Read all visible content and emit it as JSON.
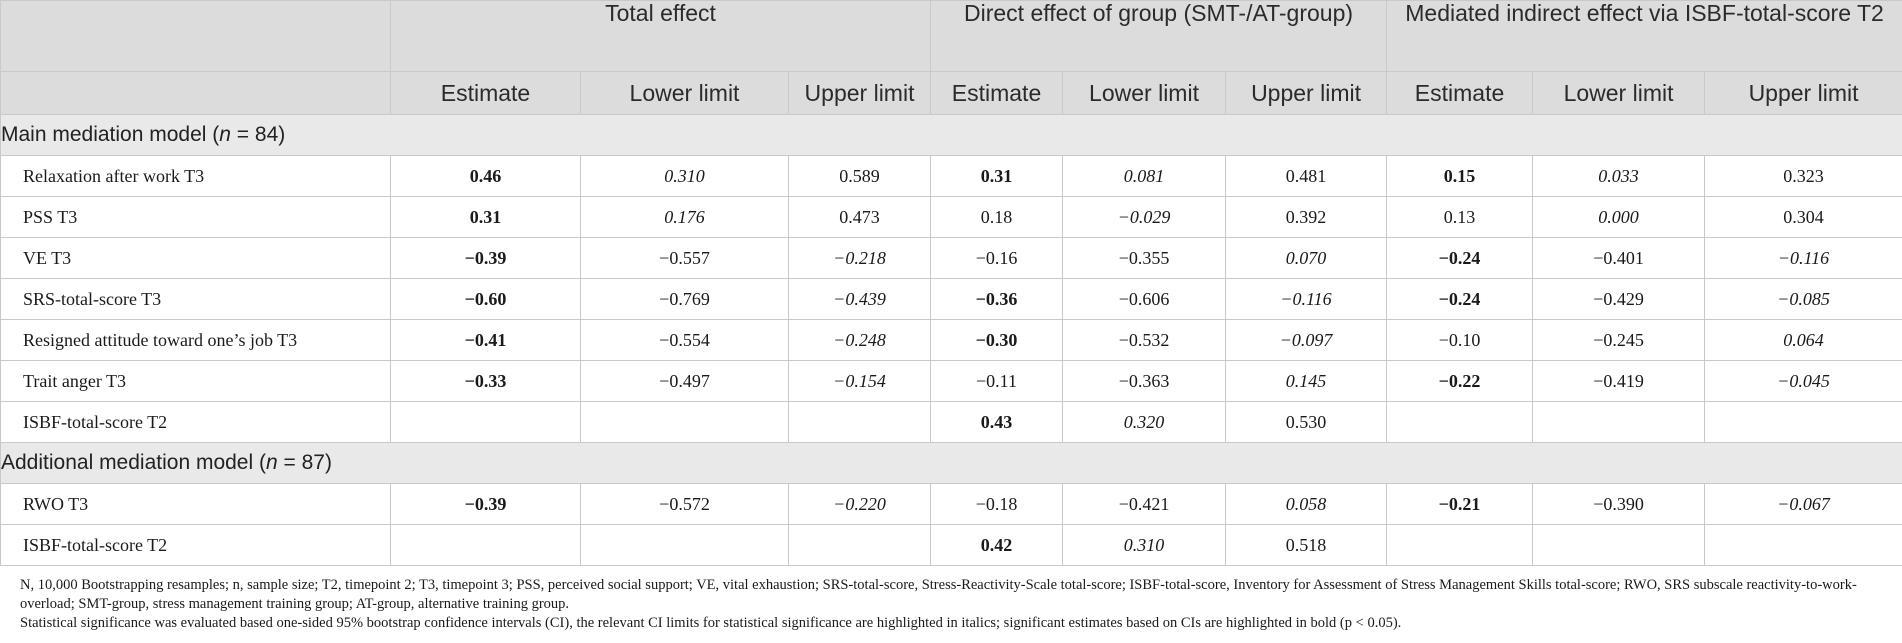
{
  "header": {
    "groups": [
      "Total effect",
      "Direct effect of group (SMT-/AT-group)",
      "Mediated indirect effect via ISBF-total-score T2"
    ],
    "subcols": [
      "Estimate",
      "Lower limit",
      "Upper limit"
    ]
  },
  "sections": [
    {
      "title_prefix": "Main mediation model (",
      "title_var": "n",
      "title_suffix": " = 84)",
      "rows": [
        {
          "label": "Relaxation after work T3",
          "cells": [
            {
              "v": "0.46",
              "s": "b"
            },
            {
              "v": "0.310",
              "s": "i"
            },
            {
              "v": "0.589",
              "s": ""
            },
            {
              "v": "0.31",
              "s": "b"
            },
            {
              "v": "0.081",
              "s": "i"
            },
            {
              "v": "0.481",
              "s": ""
            },
            {
              "v": "0.15",
              "s": "b"
            },
            {
              "v": "0.033",
              "s": "i"
            },
            {
              "v": "0.323",
              "s": ""
            }
          ]
        },
        {
          "label": "PSS T3",
          "cells": [
            {
              "v": "0.31",
              "s": "b"
            },
            {
              "v": "0.176",
              "s": "i"
            },
            {
              "v": "0.473",
              "s": ""
            },
            {
              "v": "0.18",
              "s": ""
            },
            {
              "v": "−0.029",
              "s": "i"
            },
            {
              "v": "0.392",
              "s": ""
            },
            {
              "v": "0.13",
              "s": ""
            },
            {
              "v": "0.000",
              "s": "i"
            },
            {
              "v": "0.304",
              "s": ""
            }
          ]
        },
        {
          "label": "VE T3",
          "cells": [
            {
              "v": "−0.39",
              "s": "b"
            },
            {
              "v": "−0.557",
              "s": ""
            },
            {
              "v": "−0.218",
              "s": "i"
            },
            {
              "v": "−0.16",
              "s": ""
            },
            {
              "v": "−0.355",
              "s": ""
            },
            {
              "v": "0.070",
              "s": "i"
            },
            {
              "v": "−0.24",
              "s": "b"
            },
            {
              "v": "−0.401",
              "s": ""
            },
            {
              "v": "−0.116",
              "s": "i"
            }
          ]
        },
        {
          "label": "SRS-total-score T3",
          "cells": [
            {
              "v": "−0.60",
              "s": "b"
            },
            {
              "v": "−0.769",
              "s": ""
            },
            {
              "v": "−0.439",
              "s": "i"
            },
            {
              "v": "−0.36",
              "s": "b"
            },
            {
              "v": "−0.606",
              "s": ""
            },
            {
              "v": "−0.116",
              "s": "i"
            },
            {
              "v": "−0.24",
              "s": "b"
            },
            {
              "v": "−0.429",
              "s": ""
            },
            {
              "v": "−0.085",
              "s": "i"
            }
          ]
        },
        {
          "label": "Resigned attitude toward one’s job T3",
          "cells": [
            {
              "v": "−0.41",
              "s": "b"
            },
            {
              "v": "−0.554",
              "s": ""
            },
            {
              "v": "−0.248",
              "s": "i"
            },
            {
              "v": "−0.30",
              "s": "b"
            },
            {
              "v": "−0.532",
              "s": ""
            },
            {
              "v": "−0.097",
              "s": "i"
            },
            {
              "v": "−0.10",
              "s": ""
            },
            {
              "v": "−0.245",
              "s": ""
            },
            {
              "v": "0.064",
              "s": "i"
            }
          ]
        },
        {
          "label": "Trait anger T3",
          "cells": [
            {
              "v": "−0.33",
              "s": "b"
            },
            {
              "v": "−0.497",
              "s": ""
            },
            {
              "v": "−0.154",
              "s": "i"
            },
            {
              "v": "−0.11",
              "s": ""
            },
            {
              "v": "−0.363",
              "s": ""
            },
            {
              "v": "0.145",
              "s": "i"
            },
            {
              "v": "−0.22",
              "s": "b"
            },
            {
              "v": "−0.419",
              "s": ""
            },
            {
              "v": "−0.045",
              "s": "i"
            }
          ]
        },
        {
          "label": "ISBF-total-score T2",
          "cells": [
            {
              "v": "",
              "s": ""
            },
            {
              "v": "",
              "s": ""
            },
            {
              "v": "",
              "s": ""
            },
            {
              "v": "0.43",
              "s": "b"
            },
            {
              "v": "0.320",
              "s": "i"
            },
            {
              "v": "0.530",
              "s": ""
            },
            {
              "v": "",
              "s": ""
            },
            {
              "v": "",
              "s": ""
            },
            {
              "v": "",
              "s": ""
            }
          ]
        }
      ]
    },
    {
      "title_prefix": "Additional mediation model (",
      "title_var": "n",
      "title_suffix": " = 87)",
      "rows": [
        {
          "label": "RWO T3",
          "cells": [
            {
              "v": "−0.39",
              "s": "b"
            },
            {
              "v": "−0.572",
              "s": ""
            },
            {
              "v": "−0.220",
              "s": "i"
            },
            {
              "v": "−0.18",
              "s": ""
            },
            {
              "v": "−0.421",
              "s": ""
            },
            {
              "v": "0.058",
              "s": "i"
            },
            {
              "v": "−0.21",
              "s": "b"
            },
            {
              "v": "−0.390",
              "s": ""
            },
            {
              "v": "−0.067",
              "s": "i"
            }
          ]
        },
        {
          "label": "ISBF-total-score T2",
          "cells": [
            {
              "v": "",
              "s": ""
            },
            {
              "v": "",
              "s": ""
            },
            {
              "v": "",
              "s": ""
            },
            {
              "v": "0.42",
              "s": "b"
            },
            {
              "v": "0.310",
              "s": "i"
            },
            {
              "v": "0.518",
              "s": ""
            },
            {
              "v": "",
              "s": ""
            },
            {
              "v": "",
              "s": ""
            },
            {
              "v": "",
              "s": ""
            }
          ]
        }
      ]
    }
  ],
  "notes": {
    "abbreviations": "N, 10,000 Bootstrapping resamples; n, sample size; T2, timepoint 2; T3, timepoint 3; PSS, perceived social support; VE, vital exhaustion; SRS-total-score, Stress-Reactivity-Scale total-score; ISBF-total-score, Inventory for Assessment of Stress Management Skills total-score; RWO, SRS subscale reactivity-to-work-overload; SMT-group, stress management training group; AT-group, alternative training group.",
    "significance": "Statistical significance was evaluated based one-sided 95% bootstrap confidence intervals (CI), the relevant CI limits for statistical significance are highlighted in italics; significant estimates based on CIs are highlighted in bold (p < 0.05)."
  }
}
